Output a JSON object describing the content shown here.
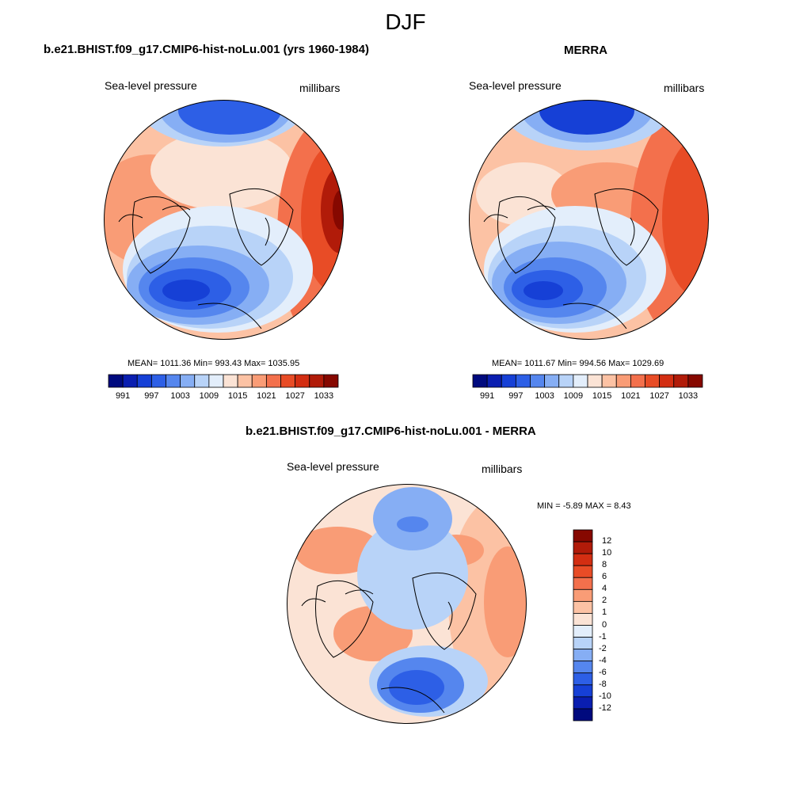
{
  "title": "DJF",
  "panels": [
    {
      "title": "b.e21.BHIST.f09_g17.CMIP6-hist-noLu.001 (yrs 1960-1984)",
      "variable": "Sea-level pressure",
      "units": "millibars",
      "stats": "MEAN= 1011.36  Min= 993.43  Max= 1035.95"
    },
    {
      "title": "MERRA",
      "variable": "Sea-level pressure",
      "units": "millibars",
      "stats": "MEAN= 1011.67  Min= 994.56  Max= 1029.69"
    },
    {
      "title": "b.e21.BHIST.f09_g17.CMIP6-hist-noLu.001 - MERRA",
      "variable": "Sea-level pressure",
      "units": "millibars",
      "stats": "MIN =  -5.89 MAX =   8.43"
    }
  ],
  "colorbar_abs": {
    "colors": [
      "#000a7e",
      "#0a1eb0",
      "#1640d6",
      "#2d5fe6",
      "#5586ee",
      "#86aef4",
      "#b8d3f8",
      "#e3eefb",
      "#fbe3d5",
      "#fcc2a4",
      "#f99c76",
      "#f3704c",
      "#e84c26",
      "#d32e12",
      "#b11b09",
      "#860800"
    ],
    "labels": [
      "991",
      "997",
      "1003",
      "1009",
      "1015",
      "1021",
      "1027",
      "1033"
    ]
  },
  "colorbar_diff": {
    "colors": [
      "#000a7e",
      "#0a1eb0",
      "#1640d6",
      "#2d5fe6",
      "#5586ee",
      "#86aef4",
      "#b8d3f8",
      "#e3eefb",
      "#fbe3d5",
      "#fcc2a4",
      "#f99c76",
      "#f3704c",
      "#e84c26",
      "#d32e12",
      "#b11b09",
      "#860800"
    ],
    "labels": [
      "12",
      "10",
      "8",
      "6",
      "4",
      "2",
      "1",
      "0",
      "-1",
      "-2",
      "-4",
      "-6",
      "-8",
      "-10",
      "-12"
    ]
  }
}
